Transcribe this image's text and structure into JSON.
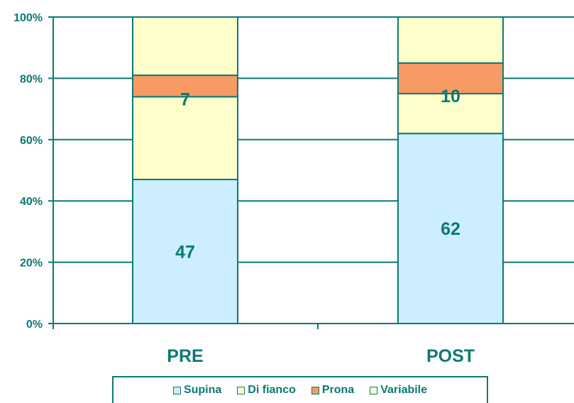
{
  "chart_data": {
    "type": "bar",
    "stacked": true,
    "percent_stacked": true,
    "categories": [
      "PRE",
      "POST"
    ],
    "series": [
      {
        "name": "Supina",
        "values": [
          47,
          62
        ],
        "color": "#cceeff",
        "labels": [
          "47",
          "62"
        ]
      },
      {
        "name": "Di fianco",
        "values": [
          27,
          13
        ],
        "color": "#ffffcc",
        "labels": [
          "",
          ""
        ]
      },
      {
        "name": "Prona",
        "values": [
          7,
          10
        ],
        "color": "#f79a64",
        "labels": [
          "7",
          "10"
        ]
      },
      {
        "name": "Variabile",
        "values": [
          19,
          15
        ],
        "color": "#ffffcc",
        "labels": [
          "",
          ""
        ]
      }
    ],
    "ylim": [
      0,
      100
    ],
    "y_ticks": [
      "0%",
      "20%",
      "40%",
      "60%",
      "80%",
      "100%"
    ],
    "y_tick_values": [
      0,
      20,
      40,
      60,
      80,
      100
    ],
    "grid": true,
    "legend_position": "bottom",
    "title": "",
    "xlabel": "",
    "ylabel": ""
  },
  "colors": {
    "text": "#0b7a73",
    "outline": "#0b7a73"
  }
}
